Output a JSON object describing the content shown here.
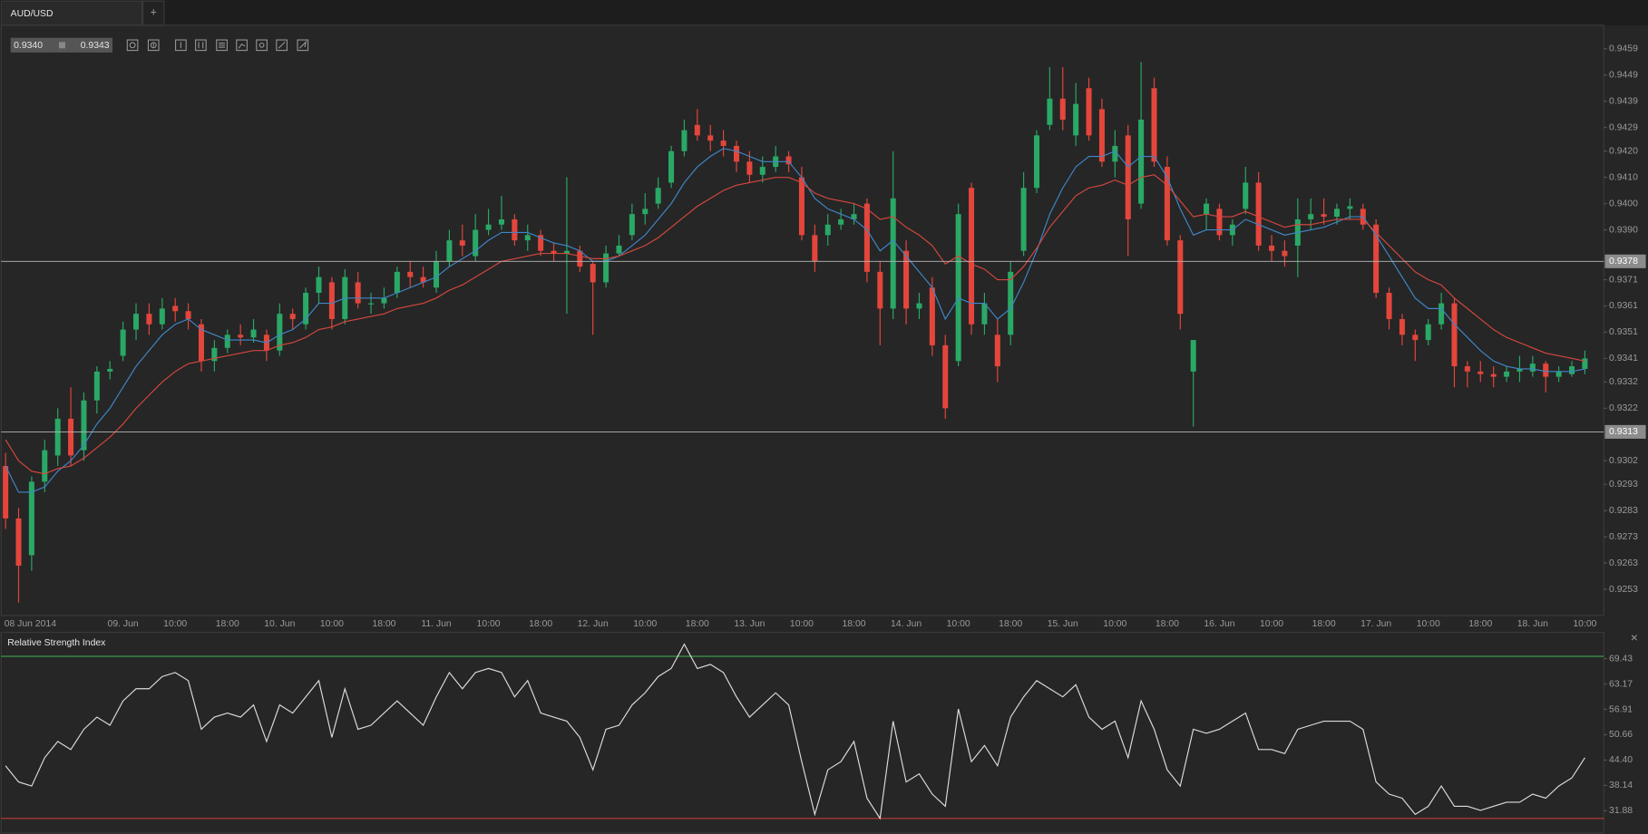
{
  "ui": {
    "tab": "AUD/USD",
    "new_tab": "+",
    "bid": "0.9340",
    "ask": "0.9343",
    "close": "×"
  },
  "chart_data": [
    {
      "type": "candlestick",
      "categories": [
        "08 Jun 2014",
        null,
        null,
        null,
        null,
        null,
        null,
        null,
        null,
        "09. Jun",
        null,
        null,
        null,
        "10:00",
        null,
        null,
        null,
        "18:00",
        null,
        null,
        null,
        "10. Jun",
        null,
        null,
        null,
        "10:00",
        null,
        null,
        null,
        "18:00",
        null,
        null,
        null,
        "11. Jun",
        null,
        null,
        null,
        "10:00",
        null,
        null,
        null,
        "18:00",
        null,
        null,
        null,
        "12. Jun",
        null,
        null,
        null,
        "10:00",
        null,
        null,
        null,
        "18:00",
        null,
        null,
        null,
        "13. Jun",
        null,
        null,
        null,
        "10:00",
        null,
        null,
        null,
        "18:00",
        null,
        null,
        null,
        "14. Jun",
        null,
        null,
        null,
        "10:00",
        null,
        null,
        null,
        "18:00",
        null,
        null,
        null,
        "15. Jun",
        null,
        null,
        null,
        "10:00",
        null,
        null,
        null,
        "18:00",
        null,
        null,
        null,
        "16. Jun",
        null,
        null,
        null,
        "10:00",
        null,
        null,
        null,
        "18:00",
        null,
        null,
        null,
        "17. Jun",
        null,
        null,
        null,
        "10:00",
        null,
        null,
        null,
        "18:00",
        null,
        null,
        null,
        "18. Jun",
        null,
        null,
        null,
        "10:00"
      ],
      "open": [
        0.93,
        0.928,
        0.9266,
        0.9294,
        0.9304,
        0.9318,
        0.9306,
        0.9325,
        0.9336,
        0.9342,
        0.9352,
        0.9358,
        0.9354,
        0.9361,
        0.9359,
        0.9354,
        0.934,
        0.9345,
        0.935,
        0.9349,
        0.935,
        0.9344,
        0.9358,
        0.9354,
        0.9366,
        0.937,
        0.9356,
        0.937,
        0.9362,
        0.9362,
        0.9366,
        0.9374,
        0.9372,
        0.9368,
        0.9378,
        0.9386,
        0.938,
        0.939,
        0.9392,
        0.9394,
        0.9386,
        0.9388,
        0.9382,
        0.9381,
        0.9382,
        0.9377,
        0.937,
        0.9381,
        0.9388,
        0.9396,
        0.94,
        0.9408,
        0.942,
        0.943,
        0.9426,
        0.9424,
        0.9422,
        0.9416,
        0.9411,
        0.9414,
        0.9418,
        0.941,
        0.9388,
        0.9388,
        0.9392,
        0.9394,
        0.94,
        0.9374,
        0.936,
        0.9382,
        0.936,
        0.9368,
        0.9346,
        0.934,
        0.9406,
        0.9354,
        0.935,
        0.935,
        0.9382,
        0.9406,
        0.943,
        0.944,
        0.9426,
        0.9444,
        0.9436,
        0.9416,
        0.9426,
        0.94,
        0.9444,
        0.9414,
        0.9386,
        0.9336,
        0.9396,
        0.9398,
        0.9388,
        0.9398,
        0.9408,
        0.9384,
        0.9382,
        0.9384,
        0.9394,
        0.9396,
        0.9395,
        0.9398,
        0.9398,
        0.9392,
        0.9366,
        0.9356,
        0.935,
        0.9348,
        0.9354,
        0.9362,
        0.9338,
        0.9336,
        0.9335,
        0.9334,
        0.9336,
        0.9336,
        0.9339,
        0.9334,
        0.9335,
        0.9337
      ],
      "high": [
        0.9305,
        0.9284,
        0.9296,
        0.931,
        0.9322,
        0.933,
        0.9328,
        0.9338,
        0.934,
        0.9355,
        0.9362,
        0.9362,
        0.9364,
        0.9364,
        0.9362,
        0.9356,
        0.9348,
        0.9352,
        0.9354,
        0.9356,
        0.9352,
        0.9362,
        0.936,
        0.9368,
        0.9376,
        0.9372,
        0.9375,
        0.9374,
        0.9366,
        0.9368,
        0.9376,
        0.9378,
        0.9376,
        0.9382,
        0.939,
        0.9392,
        0.9396,
        0.9398,
        0.9403,
        0.9396,
        0.9392,
        0.939,
        0.9385,
        0.941,
        0.9384,
        0.9378,
        0.9384,
        0.9388,
        0.94,
        0.9404,
        0.941,
        0.9422,
        0.9432,
        0.9436,
        0.943,
        0.9428,
        0.9424,
        0.942,
        0.9418,
        0.9422,
        0.942,
        0.9414,
        0.9392,
        0.9396,
        0.9398,
        0.94,
        0.9402,
        0.9378,
        0.942,
        0.9386,
        0.9366,
        0.9372,
        0.935,
        0.94,
        0.9408,
        0.9366,
        0.9356,
        0.9378,
        0.9412,
        0.9428,
        0.9452,
        0.9452,
        0.9446,
        0.9448,
        0.944,
        0.9428,
        0.943,
        0.9454,
        0.9448,
        0.9418,
        0.9388,
        0.9348,
        0.9402,
        0.94,
        0.9394,
        0.9414,
        0.9412,
        0.9388,
        0.9386,
        0.9402,
        0.9402,
        0.9402,
        0.94,
        0.9402,
        0.94,
        0.9394,
        0.9368,
        0.9358,
        0.9352,
        0.9356,
        0.9366,
        0.9364,
        0.934,
        0.934,
        0.9338,
        0.9338,
        0.9342,
        0.9342,
        0.934,
        0.9338,
        0.934,
        0.9344
      ],
      "low": [
        0.9276,
        0.9248,
        0.926,
        0.929,
        0.93,
        0.93,
        0.9302,
        0.932,
        0.9333,
        0.934,
        0.9348,
        0.935,
        0.9352,
        0.9355,
        0.9352,
        0.9336,
        0.9336,
        0.9343,
        0.9346,
        0.9347,
        0.934,
        0.9342,
        0.9352,
        0.9352,
        0.9362,
        0.9352,
        0.9354,
        0.936,
        0.9358,
        0.936,
        0.9364,
        0.9368,
        0.9368,
        0.9366,
        0.9376,
        0.938,
        0.9378,
        0.9388,
        0.939,
        0.9384,
        0.9382,
        0.938,
        0.9378,
        0.9358,
        0.9374,
        0.935,
        0.9368,
        0.938,
        0.9386,
        0.9392,
        0.9398,
        0.9406,
        0.9418,
        0.9424,
        0.942,
        0.9418,
        0.9412,
        0.9408,
        0.9408,
        0.9412,
        0.9412,
        0.9386,
        0.9374,
        0.9384,
        0.939,
        0.9392,
        0.937,
        0.9346,
        0.9356,
        0.9354,
        0.9356,
        0.9342,
        0.9318,
        0.9338,
        0.935,
        0.935,
        0.9332,
        0.9346,
        0.938,
        0.9404,
        0.9428,
        0.9428,
        0.9422,
        0.9424,
        0.9414,
        0.941,
        0.938,
        0.9398,
        0.9414,
        0.9384,
        0.9352,
        0.9315,
        0.939,
        0.9386,
        0.9384,
        0.9396,
        0.9382,
        0.9378,
        0.9376,
        0.9372,
        0.939,
        0.9392,
        0.9392,
        0.9394,
        0.939,
        0.9364,
        0.9352,
        0.9346,
        0.934,
        0.9346,
        0.9352,
        0.933,
        0.933,
        0.9332,
        0.933,
        0.9332,
        0.9332,
        0.9334,
        0.9328,
        0.9332,
        0.9334,
        0.9335
      ],
      "close": [
        0.928,
        0.9262,
        0.9294,
        0.9306,
        0.9318,
        0.9304,
        0.9325,
        0.9336,
        0.9337,
        0.9352,
        0.9358,
        0.9354,
        0.936,
        0.9359,
        0.9356,
        0.934,
        0.9345,
        0.935,
        0.9349,
        0.9352,
        0.9344,
        0.9358,
        0.9356,
        0.9366,
        0.9372,
        0.9356,
        0.9372,
        0.9362,
        0.9362,
        0.9364,
        0.9374,
        0.9372,
        0.937,
        0.9378,
        0.9386,
        0.9384,
        0.939,
        0.9392,
        0.9394,
        0.9386,
        0.9388,
        0.9382,
        0.9381,
        0.9382,
        0.9376,
        0.937,
        0.9381,
        0.9384,
        0.9396,
        0.9398,
        0.9406,
        0.942,
        0.9428,
        0.9426,
        0.9424,
        0.9422,
        0.9416,
        0.9411,
        0.9414,
        0.9418,
        0.9415,
        0.9388,
        0.9378,
        0.9392,
        0.9394,
        0.9396,
        0.9374,
        0.936,
        0.9402,
        0.936,
        0.9362,
        0.9346,
        0.9322,
        0.9396,
        0.9354,
        0.9362,
        0.9338,
        0.9374,
        0.9406,
        0.9426,
        0.944,
        0.9432,
        0.9438,
        0.9426,
        0.9416,
        0.9422,
        0.9394,
        0.9432,
        0.9416,
        0.9386,
        0.9358,
        0.9348,
        0.94,
        0.9388,
        0.9392,
        0.9408,
        0.9384,
        0.9382,
        0.938,
        0.9394,
        0.9396,
        0.9395,
        0.9398,
        0.9399,
        0.9392,
        0.9366,
        0.9356,
        0.935,
        0.9348,
        0.9354,
        0.9362,
        0.9338,
        0.9336,
        0.9335,
        0.9334,
        0.9336,
        0.9337,
        0.9339,
        0.9334,
        0.9336,
        0.9338,
        0.9341
      ],
      "up_color": "#2aa866",
      "down_color": "#e4463c",
      "lines": [
        {
          "color": "#3f86c8",
          "values": [
            0.93,
            0.929,
            0.929,
            0.9292,
            0.9298,
            0.9302,
            0.9308,
            0.9316,
            0.9322,
            0.933,
            0.9338,
            0.9344,
            0.935,
            0.9354,
            0.9356,
            0.9352,
            0.935,
            0.9348,
            0.9348,
            0.9348,
            0.9347,
            0.935,
            0.9352,
            0.9356,
            0.9362,
            0.9362,
            0.9364,
            0.9364,
            0.9364,
            0.9364,
            0.9366,
            0.9368,
            0.937,
            0.9372,
            0.9376,
            0.9379,
            0.9382,
            0.9386,
            0.9389,
            0.9389,
            0.9389,
            0.9387,
            0.9385,
            0.9384,
            0.9382,
            0.9378,
            0.9378,
            0.938,
            0.9384,
            0.9388,
            0.9394,
            0.94,
            0.9408,
            0.9414,
            0.9418,
            0.9421,
            0.942,
            0.9418,
            0.9416,
            0.9416,
            0.9416,
            0.941,
            0.9402,
            0.9398,
            0.9396,
            0.9394,
            0.939,
            0.9382,
            0.9386,
            0.938,
            0.9374,
            0.9368,
            0.9356,
            0.9364,
            0.9362,
            0.9362,
            0.9356,
            0.936,
            0.937,
            0.9382,
            0.9396,
            0.9406,
            0.9414,
            0.9418,
            0.9418,
            0.942,
            0.9414,
            0.9418,
            0.9418,
            0.941,
            0.9398,
            0.9388,
            0.939,
            0.939,
            0.939,
            0.9394,
            0.9392,
            0.939,
            0.9388,
            0.9389,
            0.939,
            0.9391,
            0.9393,
            0.9395,
            0.9395,
            0.9388,
            0.938,
            0.9372,
            0.9364,
            0.936,
            0.936,
            0.9354,
            0.9349,
            0.9344,
            0.934,
            0.9338,
            0.9337,
            0.9337,
            0.9336,
            0.9336,
            0.9336,
            0.9337
          ]
        },
        {
          "color": "#d4473d",
          "values": [
            0.931,
            0.9302,
            0.9298,
            0.9297,
            0.9299,
            0.93,
            0.9303,
            0.9307,
            0.9311,
            0.9316,
            0.9322,
            0.9327,
            0.9332,
            0.9336,
            0.9339,
            0.934,
            0.9341,
            0.9342,
            0.9343,
            0.9344,
            0.9344,
            0.9346,
            0.9347,
            0.9349,
            0.9352,
            0.9353,
            0.9355,
            0.9356,
            0.9357,
            0.9358,
            0.936,
            0.9361,
            0.9362,
            0.9364,
            0.9367,
            0.9369,
            0.9372,
            0.9375,
            0.9378,
            0.9379,
            0.938,
            0.9381,
            0.9381,
            0.9381,
            0.938,
            0.9379,
            0.9379,
            0.938,
            0.9382,
            0.9384,
            0.9387,
            0.9391,
            0.9395,
            0.9399,
            0.9402,
            0.9405,
            0.9407,
            0.9408,
            0.9409,
            0.941,
            0.941,
            0.9408,
            0.9404,
            0.9402,
            0.9401,
            0.94,
            0.9398,
            0.9394,
            0.9395,
            0.9391,
            0.9388,
            0.9384,
            0.9377,
            0.938,
            0.9377,
            0.9375,
            0.9371,
            0.9371,
            0.9376,
            0.9383,
            0.9391,
            0.9397,
            0.9403,
            0.9406,
            0.9407,
            0.9409,
            0.9407,
            0.941,
            0.9411,
            0.9407,
            0.9401,
            0.9395,
            0.9396,
            0.9395,
            0.9395,
            0.9397,
            0.9395,
            0.9393,
            0.9391,
            0.9392,
            0.9392,
            0.9393,
            0.9394,
            0.9394,
            0.9394,
            0.9389,
            0.9384,
            0.9379,
            0.9374,
            0.9371,
            0.9369,
            0.9364,
            0.936,
            0.9356,
            0.9352,
            0.9349,
            0.9347,
            0.9345,
            0.9343,
            0.9342,
            0.9341,
            0.934
          ]
        }
      ],
      "hlines": [
        0.9378,
        0.9313
      ],
      "ylim": [
        0.9243,
        0.9468
      ],
      "yticks": [
        0.9459,
        0.9449,
        0.9439,
        0.9429,
        {
          "value": 0.942,
          "label": "0.9420"
        },
        {
          "value": 0.941,
          "label": "0.9410"
        },
        {
          "value": 0.94,
          "label": "0.9400"
        },
        {
          "value": 0.939,
          "label": "0.9390"
        },
        0.9371,
        0.9361,
        0.9351,
        0.9341,
        0.9332,
        0.9322,
        0.9302,
        0.9293,
        0.9283,
        0.9273,
        0.9263,
        0.9253
      ]
    },
    {
      "type": "line",
      "title": "Relative Strength Index",
      "color": "#dcdcdc",
      "values": [
        43,
        39,
        38,
        45,
        49,
        47,
        52,
        55,
        53,
        59,
        62,
        62,
        65,
        66,
        64,
        52,
        55,
        56,
        55,
        58,
        49,
        58,
        56,
        60,
        64,
        50,
        62,
        52,
        53,
        56,
        59,
        56,
        53,
        60,
        66,
        62,
        66,
        67,
        66,
        60,
        64,
        56,
        55,
        54,
        50,
        42,
        52,
        53,
        58,
        61,
        65,
        67,
        73,
        67,
        68,
        66,
        60,
        55,
        58,
        61,
        58,
        44,
        31,
        42,
        44,
        49,
        35,
        30,
        54,
        39,
        41,
        36,
        33,
        57,
        44,
        48,
        43,
        55,
        60,
        64,
        62,
        60,
        63,
        55,
        52,
        54,
        45,
        59,
        52,
        42,
        38,
        52,
        51,
        52,
        54,
        56,
        47,
        47,
        46,
        52,
        53,
        54,
        54,
        54,
        52,
        39,
        36,
        35,
        31,
        33,
        38,
        33,
        33,
        32,
        33,
        34,
        34,
        36,
        35,
        38,
        40,
        45
      ],
      "levels": [
        {
          "value": 70,
          "color": "#3d9a4a"
        },
        {
          "value": 30,
          "color": "#c23b33"
        }
      ],
      "ylim": [
        27.2,
        75.4
      ],
      "yticks": [
        69.43,
        63.17,
        56.91,
        50.66,
        {
          "value": 44.4,
          "label": "44.40"
        },
        38.14,
        31.88
      ]
    }
  ]
}
